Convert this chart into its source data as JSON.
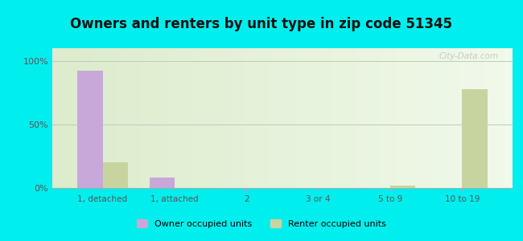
{
  "title": "Owners and renters by unit type in zip code 51345",
  "categories": [
    "1, detached",
    "1, attached",
    "2",
    "3 or 4",
    "5 to 9",
    "10 to 19"
  ],
  "owner_values": [
    92,
    8,
    0,
    0,
    0,
    0
  ],
  "renter_values": [
    20,
    0,
    0,
    0,
    2,
    78
  ],
  "owner_color": "#c8a8d8",
  "renter_color": "#c8d4a0",
  "background_color": "#00eeee",
  "plot_bg_color": "#e8f0dc",
  "yticks": [
    0,
    50,
    100
  ],
  "ytick_labels": [
    "0%",
    "50%",
    "100%"
  ],
  "ylim": [
    0,
    110
  ],
  "bar_width": 0.35,
  "title_fontsize": 12,
  "watermark": "City-Data.com",
  "legend_labels": [
    "Owner occupied units",
    "Renter occupied units"
  ]
}
